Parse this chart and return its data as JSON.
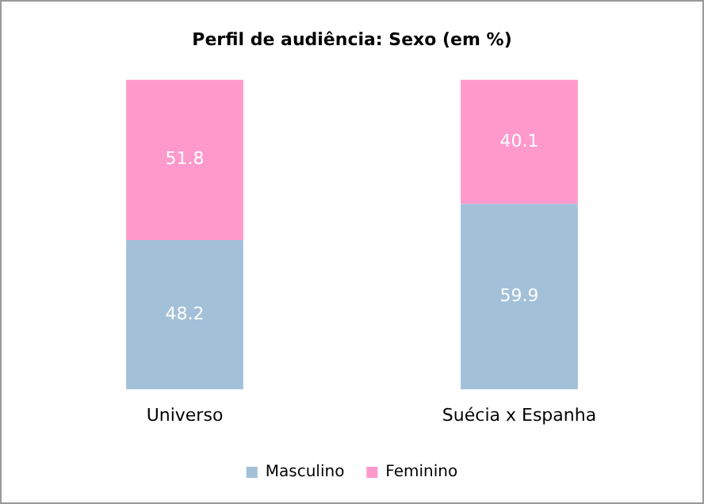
{
  "chart_data": {
    "type": "bar",
    "title": "Perfil de audiência: Sexo (em %)",
    "categories": [
      "Universo",
      "Suécia x Espanha"
    ],
    "stacked": true,
    "data_labels": true,
    "tick_labels": "x",
    "grid": false,
    "legend": "bottom",
    "series": [
      {
        "name": "Masculino",
        "color": "#a3c0d9",
        "values": [
          48.2,
          59.9
        ]
      },
      {
        "name": "Feminino",
        "color": "#ff99cc",
        "values": [
          51.8,
          40.1
        ]
      }
    ]
  }
}
